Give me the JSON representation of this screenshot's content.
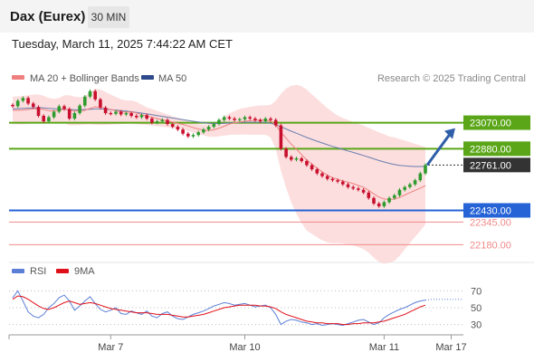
{
  "header": {
    "title": "Dax (Eurex)",
    "timeframe": "30 MIN",
    "timestamp": "Tuesday, March 11, 2025 7:44:22 AM CET"
  },
  "legend": {
    "ma20": "MA 20 + Bollinger Bands",
    "ma50": "MA 50",
    "credit": "Research © 2025 Trading Central",
    "rsi": "RSI",
    "rsi_ma": "9MA"
  },
  "colors": {
    "up_candle": "#2e9b2e",
    "down_candle": "#c8102e",
    "resistance": "#5aa618",
    "support": "#2563d6",
    "target_line": "#f08a8a",
    "bollinger_band": "#fbd3d3",
    "ma20": "#f08080",
    "ma50": "#6a7fb0",
    "rsi": "#5b7fd6",
    "rsi_ma": "#e0101a",
    "current_price": "#333333"
  },
  "chart_data": [
    {
      "type": "line",
      "title": "",
      "y_range": [
        22050,
        23470
      ],
      "price_levels": [
        {
          "label": "23070.00",
          "value": 23070,
          "kind": "resistance"
        },
        {
          "label": "22880.00",
          "value": 22880,
          "kind": "resistance"
        },
        {
          "label": "22761.00",
          "value": 22761,
          "kind": "current"
        },
        {
          "label": "22430.00",
          "value": 22430,
          "kind": "support"
        },
        {
          "label": "22345.00",
          "value": 22345,
          "kind": "target"
        },
        {
          "label": "22180.00",
          "value": 22180,
          "kind": "target"
        }
      ],
      "x_tick_labels": [
        "Mar 7",
        "Mar 10",
        "Mar 11",
        "Mar 17"
      ],
      "series": [
        {
          "name": "Dax (Eurex)",
          "kind": "close",
          "values": [
            23190,
            23230,
            23250,
            23210,
            23185,
            23120,
            23080,
            23110,
            23150,
            23190,
            23170,
            23100,
            23140,
            23195,
            23260,
            23300,
            23240,
            23180,
            23140,
            23135,
            23150,
            23130,
            23140,
            23120,
            23110,
            23125,
            23100,
            23070,
            23080,
            23090,
            23060,
            23040,
            23020,
            22990,
            22970,
            22980,
            23000,
            23020,
            23040,
            23060,
            23090,
            23110,
            23100,
            23090,
            23095,
            23110,
            23100,
            23090,
            23080,
            23100,
            23090,
            23050,
            22880,
            22820,
            22800,
            22810,
            22790,
            22760,
            22730,
            22700,
            22680,
            22660,
            22650,
            22640,
            22620,
            22600,
            22590,
            22580,
            22560,
            22520,
            22480,
            22460,
            22490,
            22520,
            22540,
            22580,
            22600,
            22620,
            22650,
            22700,
            22761
          ]
        },
        {
          "name": "MA 20",
          "kind": "ma20",
          "values": [
            23160,
            23160,
            23162,
            23166,
            23170,
            23171,
            23166,
            23158,
            23156,
            23160,
            23170,
            23160,
            23156,
            23154,
            23160,
            23174,
            23186,
            23182,
            23174,
            23166,
            23158,
            23150,
            23147,
            23148,
            23141,
            23129,
            23118,
            23110,
            23100,
            23092,
            23083,
            23074,
            23066,
            23057,
            23046,
            23034,
            23024,
            23016,
            23013,
            23018,
            23030,
            23044,
            23060,
            23069,
            23076,
            23081,
            23084,
            23087,
            23089,
            23089,
            23081,
            23054,
            23000,
            22957,
            22914,
            22876,
            22837,
            22798,
            22767,
            22739,
            22711,
            22686,
            22669,
            22657,
            22646,
            22636,
            22625,
            22612,
            22599,
            22577,
            22550,
            22527,
            22513,
            22509,
            22512,
            22524,
            22542,
            22560,
            22576,
            22592,
            22610
          ]
        },
        {
          "name": "MA 50",
          "kind": "ma50",
          "values": [
            23170,
            23172,
            23174,
            23176,
            23178,
            23180,
            23178,
            23175,
            23172,
            23170,
            23168,
            23166,
            23165,
            23165,
            23166,
            23168,
            23170,
            23170,
            23168,
            23165,
            23162,
            23158,
            23154,
            23150,
            23145,
            23140,
            23134,
            23128,
            23122,
            23116,
            23110,
            23104,
            23098,
            23092,
            23086,
            23080,
            23075,
            23070,
            23066,
            23064,
            23064,
            23066,
            23068,
            23070,
            23072,
            23073,
            23074,
            23074,
            23073,
            23071,
            23066,
            23056,
            23040,
            23024,
            23008,
            22993,
            22977,
            22962,
            22948,
            22935,
            22922,
            22909,
            22897,
            22886,
            22875,
            22864,
            22853,
            22842,
            22831,
            22819,
            22806,
            22794,
            22783,
            22773,
            22765,
            22759,
            22755,
            22752,
            22750,
            22750,
            22751
          ]
        }
      ],
      "bollinger_band": {
        "upper": [
          23260,
          23262,
          23265,
          23270,
          23275,
          23276,
          23266,
          23250,
          23244,
          23250,
          23270,
          23270,
          23260,
          23256,
          23264,
          23290,
          23318,
          23312,
          23294,
          23276,
          23258,
          23240,
          23232,
          23232,
          23222,
          23202,
          23182,
          23170,
          23156,
          23144,
          23130,
          23116,
          23104,
          23093,
          23082,
          23070,
          23060,
          23055,
          23058,
          23069,
          23089,
          23113,
          23139,
          23155,
          23170,
          23178,
          23186,
          23192,
          23196,
          23196,
          23200,
          23230,
          23280,
          23320,
          23340,
          23346,
          23336,
          23312,
          23276,
          23244,
          23210,
          23176,
          23148,
          23122,
          23104,
          23090,
          23076,
          23062,
          23050,
          23033,
          23016,
          22999,
          22986,
          22969,
          22962,
          22950,
          22940,
          22928,
          22916,
          22904,
          22892
        ],
        "lower": [
          23060,
          23058,
          23059,
          23062,
          23065,
          23066,
          23066,
          23066,
          23068,
          23070,
          23070,
          23050,
          23052,
          23052,
          23056,
          23058,
          23054,
          23052,
          23054,
          23056,
          23058,
          23060,
          23062,
          23064,
          23060,
          23056,
          23054,
          23050,
          23044,
          23040,
          23036,
          23032,
          23028,
          23021,
          23010,
          22998,
          22988,
          22977,
          22968,
          22967,
          22971,
          22975,
          22981,
          22983,
          22982,
          22984,
          22982,
          22982,
          22982,
          22982,
          22962,
          22878,
          22720,
          22594,
          22488,
          22406,
          22338,
          22284,
          22258,
          22234,
          22212,
          22196,
          22190,
          22192,
          22188,
          22182,
          22174,
          22162,
          22148,
          22121,
          22084,
          22055,
          22040,
          22049,
          22062,
          22098,
          22144,
          22192,
          22236,
          22280,
          22328
        ]
      }
    },
    {
      "type": "line",
      "title": "",
      "y_range": [
        22,
        78
      ],
      "y_ticks": [
        70,
        50,
        30
      ],
      "series": [
        {
          "name": "RSI",
          "values": [
            62,
            70,
            58,
            45,
            40,
            38,
            42,
            50,
            55,
            62,
            65,
            58,
            47,
            52,
            58,
            63,
            55,
            48,
            45,
            47,
            50,
            43,
            42,
            46,
            44,
            42,
            46,
            40,
            38,
            43,
            45,
            40,
            37,
            36,
            39,
            42,
            44,
            46,
            49,
            52,
            54,
            56,
            55,
            53,
            54,
            55,
            53,
            51,
            52,
            53,
            50,
            42,
            30,
            34,
            36,
            35,
            33,
            32,
            30,
            31,
            29,
            30,
            31,
            30,
            29,
            31,
            33,
            35,
            36,
            33,
            30,
            32,
            38,
            42,
            45,
            48,
            50,
            53,
            56,
            58,
            59
          ],
          "forecast": [
            60,
            60,
            60,
            60,
            60
          ]
        },
        {
          "name": "9MA",
          "values": [
            60,
            64,
            63,
            60,
            56,
            52,
            49,
            48,
            50,
            53,
            56,
            58,
            56,
            54,
            55,
            56,
            55,
            53,
            51,
            49,
            48,
            47,
            46,
            45,
            44,
            44,
            44,
            43,
            42,
            42,
            42,
            41,
            40,
            39,
            39,
            40,
            41,
            42,
            44,
            46,
            48,
            50,
            51,
            52,
            53,
            53,
            53,
            53,
            52,
            52,
            51,
            49,
            45,
            42,
            40,
            38,
            36,
            34,
            33,
            32,
            32,
            31,
            31,
            31,
            30,
            30,
            31,
            31,
            32,
            32,
            32,
            33,
            34,
            36,
            38,
            40,
            42,
            45,
            48,
            51,
            53
          ]
        }
      ]
    }
  ]
}
